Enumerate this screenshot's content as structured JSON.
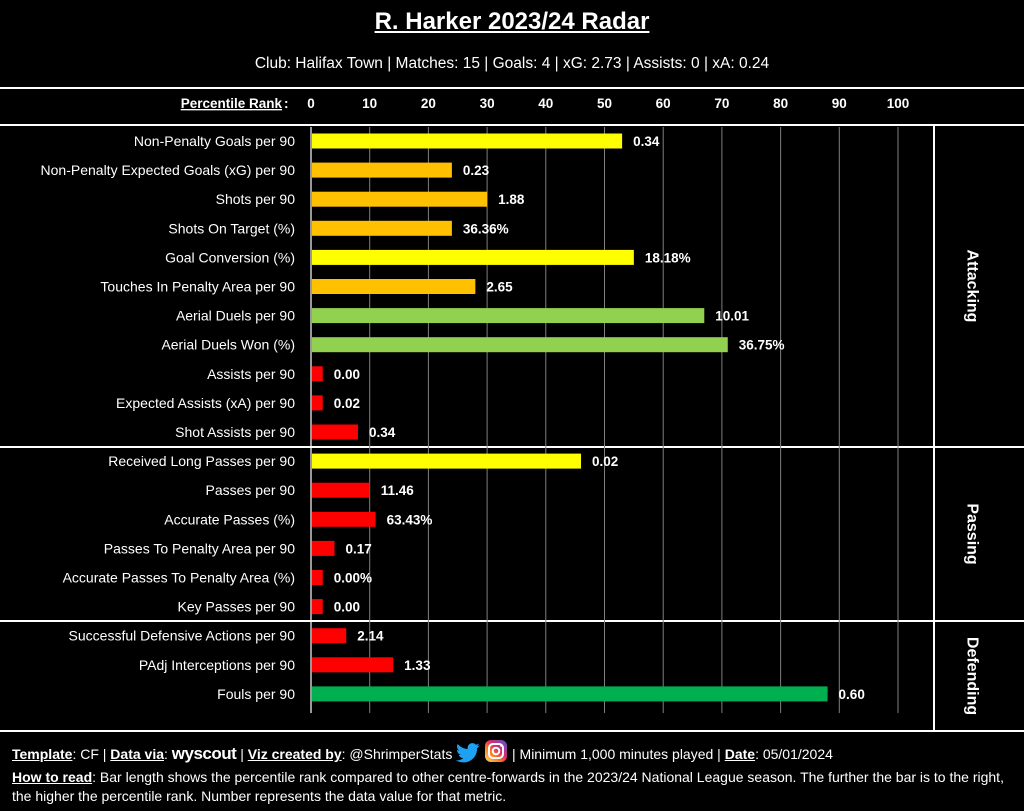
{
  "header": {
    "title": "R. Harker 2023/24 Radar",
    "subtitle": "Club: Halifax Town | Matches: 15 | Goals: 4 | xG: 2.73 | Assists: 0 | xA: 0.24"
  },
  "chart_data": {
    "type": "bar",
    "orientation": "horizontal",
    "axis_title": "Percentile Rank",
    "xlim": [
      0,
      100
    ],
    "ticks": [
      0,
      10,
      20,
      30,
      40,
      50,
      60,
      70,
      80,
      90,
      100
    ],
    "grid": true,
    "colors": {
      "yellow": "#ffff00",
      "orange": "#ffc000",
      "light_green": "#92d050",
      "red": "#ff0000",
      "green": "#00b050"
    },
    "sections": [
      {
        "name": "Attacking",
        "metrics": [
          {
            "label": "Non-Penalty Goals per 90",
            "percentile": 53,
            "value": "0.34",
            "color": "#ffff00"
          },
          {
            "label": "Non-Penalty Expected Goals (xG) per 90",
            "percentile": 24,
            "value": "0.23",
            "color": "#ffc000"
          },
          {
            "label": "Shots per 90",
            "percentile": 30,
            "value": "1.88",
            "color": "#ffc000"
          },
          {
            "label": "Shots On Target (%)",
            "percentile": 24,
            "value": "36.36%",
            "color": "#ffc000"
          },
          {
            "label": "Goal Conversion (%)",
            "percentile": 55,
            "value": "18.18%",
            "color": "#ffff00"
          },
          {
            "label": "Touches In Penalty Area per 90",
            "percentile": 28,
            "value": "2.65",
            "color": "#ffc000"
          },
          {
            "label": "Aerial Duels per 90",
            "percentile": 67,
            "value": "10.01",
            "color": "#92d050"
          },
          {
            "label": "Aerial Duels Won (%)",
            "percentile": 71,
            "value": "36.75%",
            "color": "#92d050"
          },
          {
            "label": "Assists per 90",
            "percentile": 2,
            "value": "0.00",
            "color": "#ff0000"
          },
          {
            "label": "Expected Assists (xA) per 90",
            "percentile": 2,
            "value": "0.02",
            "color": "#ff0000"
          },
          {
            "label": "Shot Assists per 90",
            "percentile": 8,
            "value": "0.34",
            "color": "#ff0000"
          }
        ]
      },
      {
        "name": "Passing",
        "metrics": [
          {
            "label": "Received Long Passes per 90",
            "percentile": 46,
            "value": "0.02",
            "color": "#ffff00"
          },
          {
            "label": "Passes per 90",
            "percentile": 10,
            "value": "11.46",
            "color": "#ff0000"
          },
          {
            "label": "Accurate Passes (%)",
            "percentile": 11,
            "value": "63.43%",
            "color": "#ff0000"
          },
          {
            "label": "Passes To Penalty Area per 90",
            "percentile": 4,
            "value": "0.17",
            "color": "#ff0000"
          },
          {
            "label": "Accurate Passes To Penalty Area (%)",
            "percentile": 2,
            "value": "0.00%",
            "color": "#ff0000"
          },
          {
            "label": "Key Passes per 90",
            "percentile": 2,
            "value": "0.00",
            "color": "#ff0000"
          }
        ]
      },
      {
        "name": "Defending",
        "metrics": [
          {
            "label": "Successful Defensive Actions per 90",
            "percentile": 6,
            "value": "2.14",
            "color": "#ff0000"
          },
          {
            "label": "PAdj Interceptions per 90",
            "percentile": 14,
            "value": "1.33",
            "color": "#ff0000"
          },
          {
            "label": "Fouls per 90",
            "percentile": 88,
            "value": "0.60",
            "color": "#00b050"
          }
        ]
      }
    ]
  },
  "footer": {
    "template_label": "Template",
    "template_value": ": CF | ",
    "data_via_label": "Data via",
    "data_via_sep": ": ",
    "data_source": "wyscout",
    "viz_label": "Viz created by",
    "viz_value": ": @ShrimperStats",
    "minimum_text": " | Minimum 1,000 minutes played | ",
    "date_label": "Date",
    "date_value": ": 05/01/2024",
    "how_label": "How to read",
    "how_text": ": Bar length shows the percentile rank compared to other centre-forwards in the 2023/24 National League season. The further the bar is to the right, the higher the percentile rank. Number represents the data value for that metric."
  }
}
